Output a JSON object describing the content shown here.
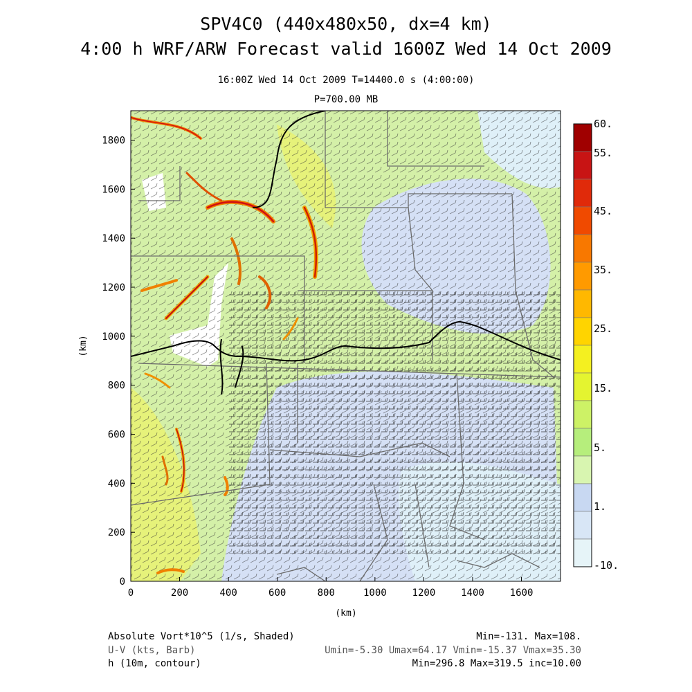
{
  "header": {
    "title_line1": "SPV4C0 (440x480x50, dx=4 km)",
    "title_line2": "4:00 h WRF/ARW Forecast valid 1600Z Wed 14 Oct 2009",
    "valid_line": "16:00Z Wed 14 Oct 2009    T=14400.0 s (4:00:00)",
    "level_line": "P=700.00 MB"
  },
  "axes": {
    "x_label": "(km)",
    "y_label": "(km)",
    "x_ticks": [
      0,
      200,
      400,
      600,
      800,
      1000,
      1200,
      1400,
      1600
    ],
    "y_ticks": [
      0,
      200,
      400,
      600,
      800,
      1000,
      1200,
      1400,
      1600,
      1800
    ],
    "x_range": [
      0,
      1760
    ],
    "y_range": [
      0,
      1920
    ]
  },
  "colorbar": {
    "labels": [
      "60.",
      "55.",
      "45.",
      "35.",
      "25.",
      "15.",
      "5.",
      "1.",
      "-10."
    ],
    "colors": [
      "#a00000",
      "#c81414",
      "#e02a0a",
      "#f04a00",
      "#f87800",
      "#ff9a00",
      "#ffb800",
      "#ffd400",
      "#f4f020",
      "#e4f430",
      "#cdf266",
      "#b6ee7c",
      "#d8f5b0",
      "#c8d8f2",
      "#d8e6f6",
      "#e6f4f8"
    ]
  },
  "footer": {
    "left1": "Absolute Vort*10^5 (1/s, Shaded)",
    "left2": "U-V (kts, Barb)",
    "left3": "h (10m, contour)",
    "right1": "Min=-131. Max=108.",
    "right2": "Umin=-5.30 Umax=64.17 Vmin=-15.37 Vmax=35.30",
    "right3": "Min=296.8 Max=319.5 inc=10.00"
  }
}
